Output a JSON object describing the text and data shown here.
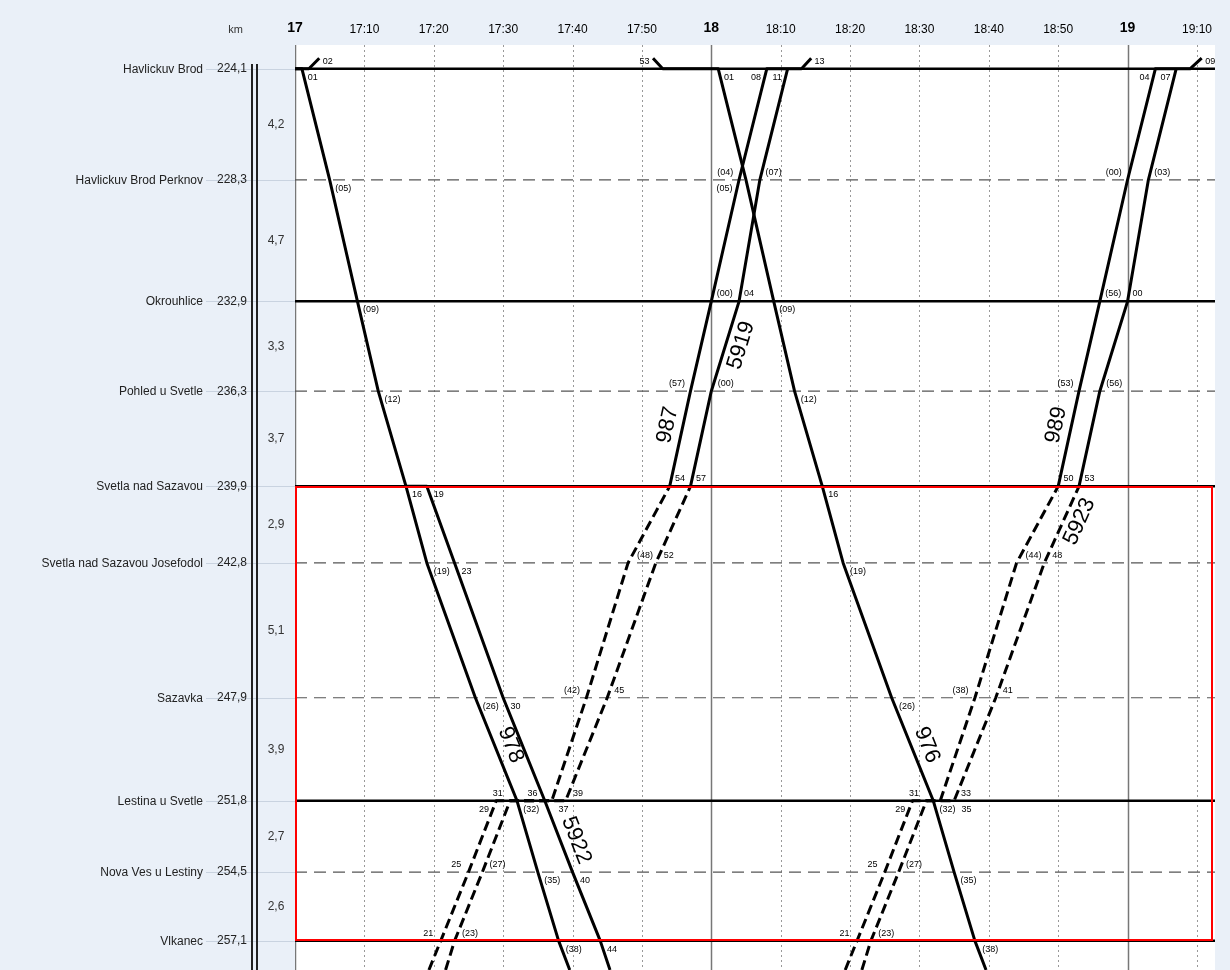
{
  "chart_data": {
    "type": "line",
    "ylabel": "km",
    "xlim": [
      17.0,
      19.21
    ],
    "ylim": [
      258.2,
      223.2
    ],
    "xticks": [
      17,
      {
        "value": 17.1667,
        "label": "17:10"
      },
      {
        "value": 17.3333,
        "label": "17:20"
      },
      {
        "value": 17.5,
        "label": "17:30"
      },
      {
        "value": 17.6667,
        "label": "17:40"
      },
      {
        "value": 17.8333,
        "label": "17:50"
      },
      18,
      {
        "value": 18.1667,
        "label": "18:10"
      },
      {
        "value": 18.3333,
        "label": "18:20"
      },
      {
        "value": 18.5,
        "label": "18:30"
      },
      {
        "value": 18.6667,
        "label": "18:40"
      },
      {
        "value": 18.8333,
        "label": "18:50"
      },
      19,
      {
        "value": 19.1667,
        "label": "19:10"
      }
    ],
    "yticks": [
      {
        "value": 224.1,
        "label": "224,1"
      },
      {
        "value": 228.3,
        "label": "228,3"
      },
      {
        "value": 232.9,
        "label": "232,9"
      },
      {
        "value": 236.3,
        "label": "236,3"
      },
      {
        "value": 239.9,
        "label": "239,9"
      },
      {
        "value": 242.8,
        "label": "242,8"
      },
      {
        "value": 247.9,
        "label": "247,9"
      },
      {
        "value": 251.8,
        "label": "251,8"
      },
      {
        "value": 254.5,
        "label": "254,5"
      },
      {
        "value": 257.1,
        "label": "257,1"
      }
    ],
    "grid": "x",
    "legend": false,
    "ref_lines": [
      {
        "axis": "y",
        "value": 224.1,
        "label": "Havlickuv Brod",
        "color": "#000000",
        "line_style": "solid"
      },
      {
        "axis": "y",
        "value": 228.3,
        "label": "Havlickuv Brod Perknov",
        "color": "#555555",
        "line_style": "dashed"
      },
      {
        "axis": "y",
        "value": 232.9,
        "label": "Okrouhlice",
        "color": "#000000",
        "line_style": "solid"
      },
      {
        "axis": "y",
        "value": 236.3,
        "label": "Pohled u Svetle",
        "color": "#555555",
        "line_style": "dashed"
      },
      {
        "axis": "y",
        "value": 239.9,
        "label": "Svetla nad Sazavou",
        "color": "#000000",
        "line_style": "solid"
      },
      {
        "axis": "y",
        "value": 242.8,
        "label": "Svetla nad Sazavou Josefodol",
        "color": "#555555",
        "line_style": "dashed"
      },
      {
        "axis": "y",
        "value": 247.9,
        "label": "Sazavka",
        "color": "#555555",
        "line_style": "dashed"
      },
      {
        "axis": "y",
        "value": 251.8,
        "label": "Lestina u Svetle",
        "color": "#000000",
        "line_style": "solid"
      },
      {
        "axis": "y",
        "value": 254.5,
        "label": "Nova Ves u Lestiny",
        "color": "#555555",
        "line_style": "dashed"
      },
      {
        "axis": "y",
        "value": 257.1,
        "label": "Vlkanec",
        "color": "#000000",
        "line_style": "solid"
      }
    ],
    "series": [
      {
        "line_style": "solid",
        "color": "#000000",
        "x": [
          17.0,
          17.0333,
          17.0583
        ],
        "values": [
          224.1,
          224.1,
          223.7
        ]
      },
      {
        "line_style": "solid",
        "color": "#000000",
        "x": [
          17.0,
          17.0167,
          17.0833,
          17.15,
          17.2,
          17.2667,
          17.3167,
          17.4333,
          17.5333,
          17.5833,
          17.6333,
          17.66
        ],
        "values": [
          224.1,
          224.1,
          228.3,
          232.9,
          236.3,
          239.9,
          242.8,
          247.9,
          251.8,
          254.5,
          257.1,
          258.2
        ]
      },
      {
        "line_style": "dashed",
        "color": "#000000",
        "x": [
          17.3617,
          17.3833,
          17.45,
          17.5167,
          17.6167,
          17.7,
          17.8,
          17.9
        ],
        "values": [
          258.2,
          257.1,
          254.5,
          251.8,
          251.8,
          247.9,
          242.8,
          239.9
        ]
      },
      {
        "line_style": "solid",
        "color": "#000000",
        "x": [
          17.9,
          17.95,
          18.0,
          18.0667,
          18.1333,
          18.2167,
          18.24
        ],
        "values": [
          239.9,
          236.3,
          232.9,
          228.3,
          224.1,
          224.1,
          223.7
        ]
      },
      {
        "line_style": "dashed",
        "color": "#000000",
        "x": [
          17.3217,
          17.35,
          17.4167,
          17.4833,
          17.65,
          17.75,
          17.8667,
          17.95
        ],
        "values": [
          258.2,
          257.1,
          254.5,
          251.8,
          251.8,
          247.9,
          242.8,
          239.9
        ]
      },
      {
        "line_style": "solid",
        "color": "#000000",
        "x": [
          17.95,
          18.0,
          18.0667,
          18.1167,
          18.1833
        ],
        "values": [
          239.9,
          236.3,
          232.9,
          228.3,
          224.1
        ]
      },
      {
        "line_style": "solid",
        "color": "#000000",
        "x": [
          17.2667,
          17.3167,
          17.3833,
          17.5,
          17.6,
          17.6667,
          17.7333,
          17.7567
        ],
        "values": [
          239.9,
          239.9,
          242.8,
          247.9,
          251.8,
          254.5,
          257.1,
          258.2
        ]
      },
      {
        "line_style": "solid",
        "color": "#000000",
        "x": [
          17.86,
          17.8833,
          18.0167,
          18.0833,
          18.15,
          18.2,
          18.2667,
          18.3167,
          18.4333,
          18.5333,
          18.5833,
          18.6333,
          18.66
        ],
        "values": [
          223.7,
          224.1,
          224.1,
          228.3,
          232.9,
          236.3,
          239.9,
          242.8,
          247.9,
          251.8,
          254.5,
          257.1,
          258.2
        ]
      },
      {
        "line_style": "dashed",
        "color": "#000000",
        "x": [
          18.3617,
          18.3833,
          18.45,
          18.5167,
          18.55,
          18.6333,
          18.7333,
          18.8333
        ],
        "values": [
          258.2,
          257.1,
          254.5,
          251.8,
          251.8,
          247.9,
          242.8,
          239.9
        ]
      },
      {
        "line_style": "solid",
        "color": "#000000",
        "x": [
          18.8333,
          18.8833,
          18.9333,
          19.0,
          19.0667,
          19.15,
          19.178
        ],
        "values": [
          239.9,
          236.3,
          232.9,
          228.3,
          224.1,
          224.1,
          223.7
        ]
      },
      {
        "line_style": "dashed",
        "color": "#000000",
        "x": [
          18.3217,
          18.35,
          18.4167,
          18.4833,
          18.5833,
          18.6833,
          18.8,
          18.8833
        ],
        "values": [
          258.2,
          257.1,
          254.5,
          251.8,
          251.8,
          247.9,
          242.8,
          239.9
        ]
      },
      {
        "line_style": "solid",
        "color": "#000000",
        "x": [
          18.8833,
          18.9333,
          19.0,
          19.05,
          19.1167
        ],
        "values": [
          239.9,
          236.3,
          232.9,
          228.3,
          224.1
        ]
      }
    ],
    "annotations": [
      "4,2",
      "4,7",
      "3,3",
      "3,7",
      "2,9",
      "5,1",
      "3,9",
      "2,7",
      "2,6",
      {
        "text": "987",
        "x": 17.9306,
        "y": 237.7
      },
      {
        "text": "5919",
        "x": 18.0373,
        "y": 234.4
      },
      {
        "text": "978",
        "x": 17.4846,
        "y": 249.9
      },
      {
        "text": "5922",
        "x": 17.642,
        "y": 253.5
      },
      {
        "text": "989",
        "x": 18.8639,
        "y": 237.7
      },
      {
        "text": "5923",
        "x": 18.8517,
        "y": 241.0
      },
      {
        "text": "976",
        "x": 18.4846,
        "y": 249.9
      },
      {
        "text": "02",
        "x": 17.0333,
        "y": 224.1
      },
      {
        "text": "01",
        "x": 17.0167,
        "y": 224.1
      },
      {
        "text": "(05)",
        "x": 17.0833,
        "y": 228.3
      },
      {
        "text": "(09)",
        "x": 17.15,
        "y": 232.9
      },
      {
        "text": "(12)",
        "x": 17.2,
        "y": 236.3
      },
      {
        "text": "16",
        "x": 17.2667,
        "y": 239.9
      },
      {
        "text": "(19)",
        "x": 17.3167,
        "y": 242.8
      },
      {
        "text": "(26)",
        "x": 17.4333,
        "y": 247.9
      },
      {
        "text": "(32)",
        "x": 17.5333,
        "y": 251.8
      },
      {
        "text": "(35)",
        "x": 17.5833,
        "y": 254.5
      },
      {
        "text": "(38)",
        "x": 17.6333,
        "y": 257.1
      },
      {
        "text": "(23)",
        "x": 17.3833,
        "y": 257.1
      },
      {
        "text": "(27)",
        "x": 17.45,
        "y": 254.5
      },
      {
        "text": "31",
        "x": 17.5167,
        "y": 251.8
      },
      {
        "text": "37",
        "x": 17.6167,
        "y": 251.8
      },
      {
        "text": "(42)",
        "x": 17.7,
        "y": 247.9
      },
      {
        "text": "(48)",
        "x": 17.8,
        "y": 242.8
      },
      {
        "text": "54",
        "x": 17.9,
        "y": 239.9
      },
      {
        "text": "(57)",
        "x": 17.95,
        "y": 236.3
      },
      {
        "text": "(00)",
        "x": 18.0,
        "y": 232.9
      },
      {
        "text": "(04)",
        "x": 18.0667,
        "y": 228.3
      },
      {
        "text": "08",
        "x": 18.1333,
        "y": 224.1
      },
      {
        "text": "13",
        "x": 18.2167,
        "y": 224.1
      },
      {
        "text": "21",
        "x": 17.35,
        "y": 257.1
      },
      {
        "text": "25",
        "x": 17.4167,
        "y": 254.5
      },
      {
        "text": "29",
        "x": 17.4833,
        "y": 251.8
      },
      {
        "text": "39",
        "x": 17.65,
        "y": 251.8
      },
      {
        "text": "45",
        "x": 17.75,
        "y": 247.9
      },
      {
        "text": "52",
        "x": 17.8667,
        "y": 242.8
      },
      {
        "text": "57",
        "x": 17.95,
        "y": 239.9
      },
      {
        "text": "(00)",
        "x": 18.0,
        "y": 236.3
      },
      {
        "text": "04",
        "x": 18.0667,
        "y": 232.9
      },
      {
        "text": "(07)",
        "x": 18.1167,
        "y": 228.3
      },
      {
        "text": "11",
        "x": 18.1833,
        "y": 224.1
      },
      {
        "text": "19",
        "x": 17.3167,
        "y": 239.9
      },
      {
        "text": "23",
        "x": 17.3833,
        "y": 242.8
      },
      {
        "text": "30",
        "x": 17.5,
        "y": 247.9
      },
      {
        "text": "36",
        "x": 17.6,
        "y": 251.8
      },
      {
        "text": "40",
        "x": 17.6667,
        "y": 254.5
      },
      {
        "text": "44",
        "x": 17.7333,
        "y": 257.1
      },
      {
        "text": "53",
        "x": 17.8833,
        "y": 224.1
      },
      {
        "text": "01",
        "x": 18.0167,
        "y": 224.1
      },
      {
        "text": "(05)",
        "x": 18.0833,
        "y": 228.3
      },
      {
        "text": "(09)",
        "x": 18.15,
        "y": 232.9
      },
      {
        "text": "(12)",
        "x": 18.2,
        "y": 236.3
      },
      {
        "text": "16",
        "x": 18.2667,
        "y": 239.9
      },
      {
        "text": "(19)",
        "x": 18.3167,
        "y": 242.8
      },
      {
        "text": "(26)",
        "x": 18.4333,
        "y": 247.9
      },
      {
        "text": "(32)",
        "x": 18.5333,
        "y": 251.8
      },
      {
        "text": "(35)",
        "x": 18.5833,
        "y": 254.5
      },
      {
        "text": "(38)",
        "x": 18.6333,
        "y": 257.1
      },
      {
        "text": "(23)",
        "x": 18.3833,
        "y": 257.1
      },
      {
        "text": "(27)",
        "x": 18.45,
        "y": 254.5
      },
      {
        "text": "31",
        "x": 18.5167,
        "y": 251.8
      },
      {
        "text": "33",
        "x": 18.55,
        "y": 251.8
      },
      {
        "text": "(38)",
        "x": 18.6333,
        "y": 247.9
      },
      {
        "text": "(44)",
        "x": 18.7333,
        "y": 242.8
      },
      {
        "text": "50",
        "x": 18.8333,
        "y": 239.9
      },
      {
        "text": "(53)",
        "x": 18.8833,
        "y": 236.3
      },
      {
        "text": "(56)",
        "x": 18.9333,
        "y": 232.9
      },
      {
        "text": "(00)",
        "x": 19.0,
        "y": 228.3
      },
      {
        "text": "04",
        "x": 19.0667,
        "y": 224.1
      },
      {
        "text": "09",
        "x": 19.15,
        "y": 224.1
      },
      {
        "text": "21",
        "x": 18.35,
        "y": 257.1
      },
      {
        "text": "25",
        "x": 18.4167,
        "y": 254.5
      },
      {
        "text": "29",
        "x": 18.4833,
        "y": 251.8
      },
      {
        "text": "35",
        "x": 18.5833,
        "y": 251.8
      },
      {
        "text": "41",
        "x": 18.6833,
        "y": 247.9
      },
      {
        "text": "48",
        "x": 18.8,
        "y": 242.8
      },
      {
        "text": "53",
        "x": 18.8833,
        "y": 239.9
      },
      {
        "text": "(56)",
        "x": 18.9333,
        "y": 236.3
      },
      {
        "text": "00",
        "x": 19.0,
        "y": 232.9
      },
      {
        "text": "(03)",
        "x": 19.05,
        "y": 228.3
      },
      {
        "text": "07",
        "x": 19.1167,
        "y": 224.1
      }
    ]
  }
}
